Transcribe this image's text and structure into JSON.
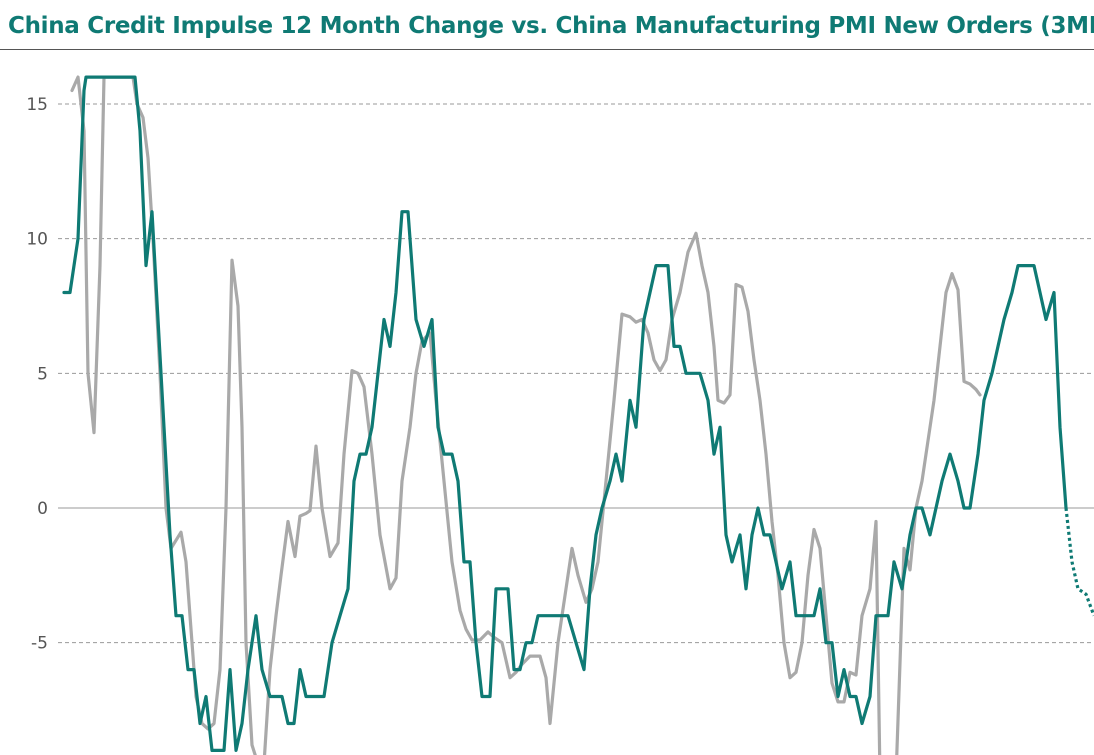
{
  "title": "China Credit Impulse 12 Month Change vs. China Manufacturing PMI New Orders (3MM",
  "chart_data": {
    "type": "line",
    "title": "China Credit Impulse 12 Month Change vs. China Manufacturing PMI New Orders (3MM",
    "xlabel": "",
    "ylabel": "",
    "ylim": [
      -8.8,
      15.5
    ],
    "yticks": [
      15,
      10,
      5,
      0,
      -5
    ],
    "ytick_labels": [
      "15",
      "10",
      "5",
      "0",
      "-5"
    ],
    "grid": true,
    "colors": {
      "teal": "#0f7a74",
      "gray": "#a9a9a9"
    },
    "series": [
      {
        "color": "#a9a9a9",
        "style": "solid",
        "points": [
          [
            72,
            15.5
          ],
          [
            78,
            16
          ],
          [
            84,
            14
          ],
          [
            88,
            5
          ],
          [
            94,
            2.8
          ],
          [
            100,
            9
          ],
          [
            104,
            16
          ],
          [
            133,
            16
          ],
          [
            137,
            15
          ],
          [
            143,
            14.5
          ],
          [
            148,
            13
          ],
          [
            153,
            10
          ],
          [
            160,
            5
          ],
          [
            166,
            0
          ],
          [
            171,
            -1.5
          ],
          [
            176,
            -1.2
          ],
          [
            181,
            -0.9
          ],
          [
            186,
            -2
          ],
          [
            191,
            -4.5
          ],
          [
            196,
            -7
          ],
          [
            202,
            -8
          ],
          [
            208,
            -8.2
          ],
          [
            214,
            -8
          ],
          [
            220,
            -6
          ],
          [
            226,
            0
          ],
          [
            232,
            9.2
          ],
          [
            238,
            7.5
          ],
          [
            242,
            3
          ],
          [
            246,
            -5
          ],
          [
            252,
            -8.8
          ],
          [
            258,
            -9.5
          ],
          [
            264,
            -9.5
          ],
          [
            270,
            -6
          ],
          [
            276,
            -4
          ],
          [
            281,
            -2.5
          ],
          [
            288,
            -0.5
          ],
          [
            295,
            -1.8
          ],
          [
            300,
            -0.3
          ],
          [
            306,
            -0.2
          ],
          [
            310,
            -0.1
          ],
          [
            316,
            2.3
          ],
          [
            322,
            0
          ],
          [
            330,
            -1.8
          ],
          [
            338,
            -1.3
          ],
          [
            344,
            2
          ],
          [
            352,
            5.1
          ],
          [
            358,
            5
          ],
          [
            364,
            4.5
          ],
          [
            372,
            2
          ],
          [
            380,
            -1
          ],
          [
            390,
            -3
          ],
          [
            396,
            -2.6
          ],
          [
            402,
            1
          ],
          [
            410,
            3
          ],
          [
            416,
            5
          ],
          [
            422,
            6.2
          ],
          [
            430,
            6.5
          ],
          [
            436,
            4
          ],
          [
            444,
            1
          ],
          [
            452,
            -2
          ],
          [
            460,
            -3.8
          ],
          [
            466,
            -4.5
          ],
          [
            472,
            -4.9
          ],
          [
            480,
            -4.9
          ],
          [
            488,
            -4.6
          ],
          [
            494,
            -4.8
          ],
          [
            502,
            -5
          ],
          [
            510,
            -6.3
          ],
          [
            516,
            -6.1
          ],
          [
            522,
            -5.8
          ],
          [
            530,
            -5.5
          ],
          [
            540,
            -5.5
          ],
          [
            546,
            -6.3
          ],
          [
            550,
            -8
          ],
          [
            558,
            -5
          ],
          [
            566,
            -3
          ],
          [
            572,
            -1.5
          ],
          [
            578,
            -2.5
          ],
          [
            586,
            -3.5
          ],
          [
            592,
            -3
          ],
          [
            598,
            -2
          ],
          [
            606,
            1
          ],
          [
            614,
            4
          ],
          [
            622,
            7.2
          ],
          [
            630,
            7.1
          ],
          [
            636,
            6.9
          ],
          [
            642,
            7
          ],
          [
            648,
            6.5
          ],
          [
            654,
            5.5
          ],
          [
            660,
            5.1
          ],
          [
            666,
            5.5
          ],
          [
            672,
            7
          ],
          [
            680,
            8
          ],
          [
            688,
            9.5
          ],
          [
            696,
            10.2
          ],
          [
            702,
            9
          ],
          [
            708,
            8
          ],
          [
            714,
            6
          ],
          [
            718,
            4
          ],
          [
            724,
            3.9
          ],
          [
            730,
            4.2
          ],
          [
            736,
            8.3
          ],
          [
            742,
            8.2
          ],
          [
            748,
            7.3
          ],
          [
            754,
            5.5
          ],
          [
            760,
            4
          ],
          [
            766,
            2
          ],
          [
            772,
            -0.5
          ],
          [
            778,
            -2.5
          ],
          [
            784,
            -5
          ],
          [
            790,
            -6.3
          ],
          [
            796,
            -6.1
          ],
          [
            802,
            -5
          ],
          [
            808,
            -2.5
          ],
          [
            814,
            -0.8
          ],
          [
            820,
            -1.5
          ],
          [
            826,
            -4
          ],
          [
            832,
            -6.5
          ],
          [
            838,
            -7.2
          ],
          [
            844,
            -7.2
          ],
          [
            850,
            -6.1
          ],
          [
            856,
            -6.2
          ],
          [
            862,
            -4
          ],
          [
            870,
            -3
          ],
          [
            876,
            -0.5
          ],
          [
            880,
            -10
          ],
          [
            896,
            -10
          ],
          [
            904,
            -1.5
          ],
          [
            910,
            -2.3
          ],
          [
            916,
            0
          ],
          [
            922,
            1
          ],
          [
            928,
            2.5
          ],
          [
            934,
            4
          ],
          [
            940,
            6
          ],
          [
            946,
            8
          ],
          [
            952,
            8.7
          ],
          [
            958,
            8.1
          ],
          [
            964,
            4.7
          ],
          [
            970,
            4.6
          ],
          [
            976,
            4.4
          ],
          [
            980,
            4.2
          ]
        ]
      },
      {
        "color": "#0f7a74",
        "style": "solid",
        "points": [
          [
            64,
            8
          ],
          [
            70,
            8
          ],
          [
            78,
            10
          ],
          [
            84,
            15.5
          ],
          [
            86,
            16
          ],
          [
            135,
            16
          ],
          [
            140,
            14
          ],
          [
            146,
            9
          ],
          [
            152,
            11
          ],
          [
            158,
            7
          ],
          [
            164,
            3
          ],
          [
            170,
            -1
          ],
          [
            176,
            -4
          ],
          [
            182,
            -4
          ],
          [
            188,
            -6
          ],
          [
            194,
            -6
          ],
          [
            200,
            -8
          ],
          [
            206,
            -7
          ],
          [
            212,
            -9
          ],
          [
            218,
            -9
          ],
          [
            224,
            -9
          ],
          [
            230,
            -6
          ],
          [
            236,
            -9
          ],
          [
            242,
            -8
          ],
          [
            248,
            -6
          ],
          [
            256,
            -4
          ],
          [
            262,
            -6
          ],
          [
            270,
            -7
          ],
          [
            276,
            -7
          ],
          [
            282,
            -7
          ],
          [
            288,
            -8
          ],
          [
            294,
            -8
          ],
          [
            300,
            -6
          ],
          [
            306,
            -7
          ],
          [
            312,
            -7
          ],
          [
            318,
            -7
          ],
          [
            324,
            -7
          ],
          [
            332,
            -5
          ],
          [
            340,
            -4
          ],
          [
            348,
            -3
          ],
          [
            354,
            1
          ],
          [
            360,
            2
          ],
          [
            366,
            2
          ],
          [
            372,
            3
          ],
          [
            378,
            5
          ],
          [
            384,
            7
          ],
          [
            390,
            6
          ],
          [
            396,
            8
          ],
          [
            402,
            11
          ],
          [
            408,
            11
          ],
          [
            416,
            7
          ],
          [
            424,
            6
          ],
          [
            432,
            7
          ],
          [
            438,
            3
          ],
          [
            444,
            2
          ],
          [
            452,
            2
          ],
          [
            458,
            1
          ],
          [
            464,
            -2
          ],
          [
            470,
            -2
          ],
          [
            476,
            -5
          ],
          [
            482,
            -7
          ],
          [
            490,
            -7
          ],
          [
            496,
            -3
          ],
          [
            502,
            -3
          ],
          [
            508,
            -3
          ],
          [
            514,
            -6
          ],
          [
            520,
            -6
          ],
          [
            526,
            -5
          ],
          [
            532,
            -5
          ],
          [
            538,
            -4
          ],
          [
            544,
            -4
          ],
          [
            550,
            -4
          ],
          [
            556,
            -4
          ],
          [
            562,
            -4
          ],
          [
            568,
            -4
          ],
          [
            576,
            -5
          ],
          [
            584,
            -6
          ],
          [
            590,
            -3
          ],
          [
            596,
            -1
          ],
          [
            602,
            0
          ],
          [
            610,
            1
          ],
          [
            616,
            2
          ],
          [
            622,
            1
          ],
          [
            630,
            4
          ],
          [
            636,
            3
          ],
          [
            644,
            7
          ],
          [
            650,
            8
          ],
          [
            656,
            9
          ],
          [
            662,
            9
          ],
          [
            668,
            9
          ],
          [
            674,
            6
          ],
          [
            680,
            6
          ],
          [
            686,
            5
          ],
          [
            694,
            5
          ],
          [
            700,
            5
          ],
          [
            708,
            4
          ],
          [
            714,
            2
          ],
          [
            720,
            3
          ],
          [
            726,
            -1
          ],
          [
            732,
            -2
          ],
          [
            740,
            -1
          ],
          [
            746,
            -3
          ],
          [
            752,
            -1
          ],
          [
            758,
            0
          ],
          [
            764,
            -1
          ],
          [
            770,
            -1
          ],
          [
            776,
            -2
          ],
          [
            782,
            -3
          ],
          [
            790,
            -2
          ],
          [
            796,
            -4
          ],
          [
            802,
            -4
          ],
          [
            808,
            -4
          ],
          [
            814,
            -4
          ],
          [
            820,
            -3
          ],
          [
            826,
            -5
          ],
          [
            832,
            -5
          ],
          [
            838,
            -7
          ],
          [
            844,
            -6
          ],
          [
            850,
            -7
          ],
          [
            856,
            -7
          ],
          [
            862,
            -8
          ],
          [
            870,
            -7
          ],
          [
            876,
            -4
          ],
          [
            882,
            -4
          ],
          [
            888,
            -4
          ],
          [
            894,
            -2
          ],
          [
            902,
            -3
          ],
          [
            910,
            -1
          ],
          [
            916,
            0
          ],
          [
            922,
            0
          ],
          [
            930,
            -1
          ],
          [
            936,
            0
          ],
          [
            942,
            1
          ],
          [
            950,
            2
          ],
          [
            958,
            1
          ],
          [
            964,
            0
          ],
          [
            970,
            0
          ],
          [
            978,
            2
          ],
          [
            984,
            4
          ],
          [
            992,
            5
          ],
          [
            998,
            6
          ],
          [
            1004,
            7
          ],
          [
            1012,
            8
          ],
          [
            1018,
            9
          ],
          [
            1026,
            9
          ],
          [
            1034,
            9
          ],
          [
            1040,
            8
          ],
          [
            1046,
            7
          ],
          [
            1054,
            8
          ],
          [
            1060,
            3
          ],
          [
            1066,
            0
          ]
        ]
      },
      {
        "color": "#0f7a74",
        "style": "dotted",
        "points": [
          [
            1066,
            0
          ],
          [
            1072,
            -2
          ],
          [
            1078,
            -3
          ],
          [
            1086,
            -3.2
          ],
          [
            1094,
            -4
          ]
        ]
      }
    ]
  }
}
